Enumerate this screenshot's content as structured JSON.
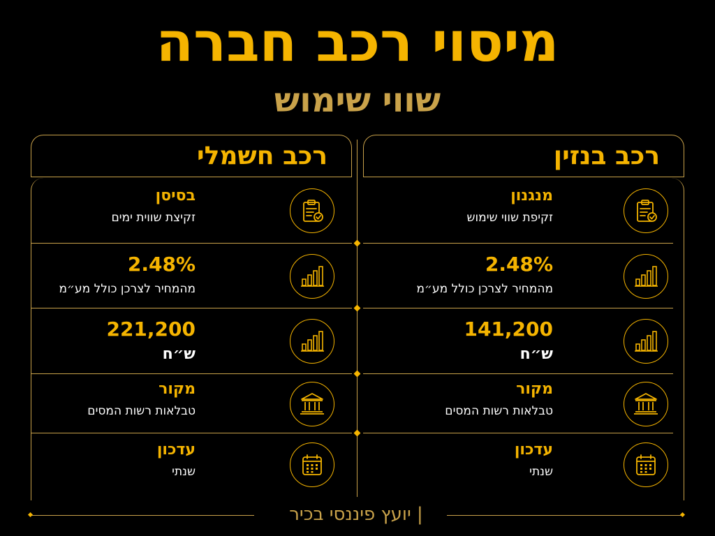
{
  "header": {
    "title": "מיסוי רכב חברה",
    "subtitle": "שווי שימוש"
  },
  "columns": [
    {
      "heading": "רכב בנזין",
      "rows": [
        {
          "icon": "clipboard-check-icon",
          "line1": "מנגנון",
          "line2": "זקיפת שווי שימוש"
        },
        {
          "icon": "bar-chart-icon",
          "line1": "2.48%",
          "line2": "מהמחיר לצרכן כולל מע״מ"
        },
        {
          "icon": "bar-chart-icon",
          "line1": "141,200",
          "line2": "ש״ח"
        },
        {
          "icon": "bank-icon",
          "line1": "מקור",
          "line2": "טבלאות רשות המסים"
        },
        {
          "icon": "calendar-icon",
          "line1": "עדכון",
          "line2": "שנתי"
        }
      ]
    },
    {
      "heading": "רכב חשמלי",
      "rows": [
        {
          "icon": "clipboard-check-icon",
          "line1": "בסיסן",
          "line2": "זקיצת שווית ימים"
        },
        {
          "icon": "bar-chart-icon",
          "line1": "2.48%",
          "line2": "מהמחיר לצרכן כולל מע״מ"
        },
        {
          "icon": "bar-chart-icon",
          "line1": "221,200",
          "line2": "ש״ח"
        },
        {
          "icon": "bank-icon",
          "line1": "מקור",
          "line2": "טבלאות רשות המסים"
        },
        {
          "icon": "calendar-icon",
          "line1": "עדכון",
          "line2": "שנתי"
        }
      ]
    }
  ],
  "footer": {
    "text": "| יועץ פיננסי בכיר"
  },
  "colors": {
    "accent": "#f5b400",
    "border": "#c9a24a",
    "background": "#000000",
    "text": "#ffffff"
  }
}
